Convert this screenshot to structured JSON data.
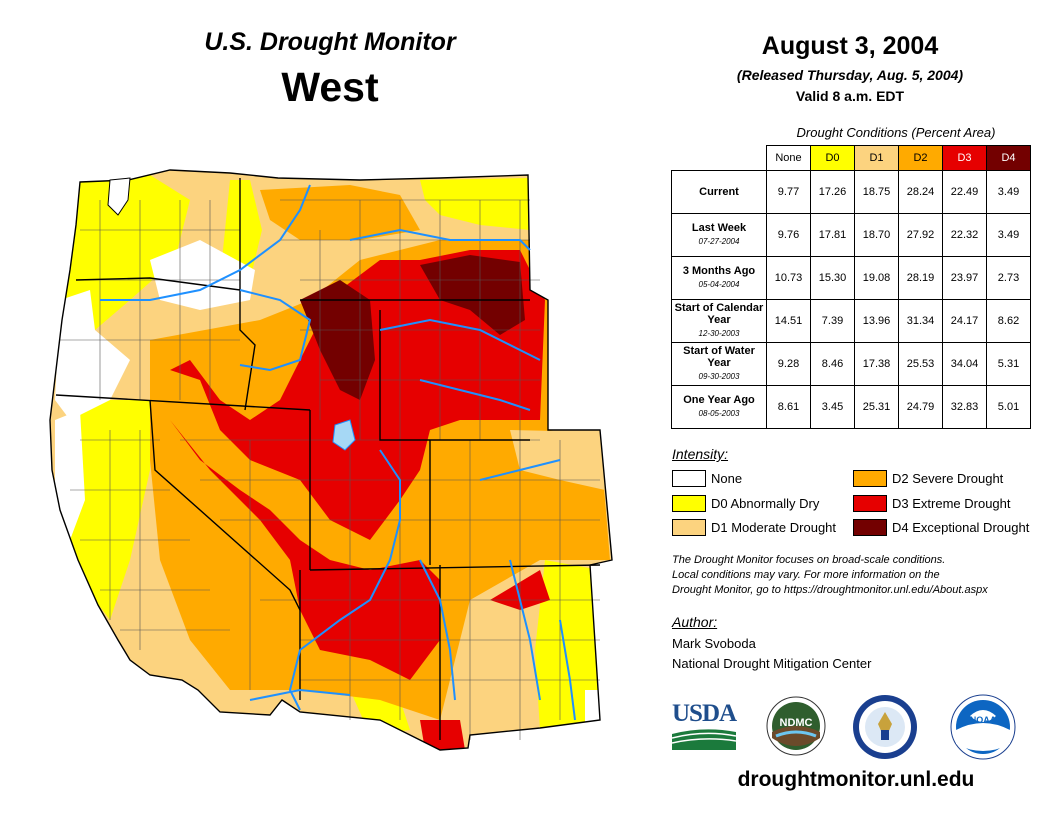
{
  "header": {
    "monitor_title": "U.S. Drought Monitor",
    "region": "West",
    "date": "August 3, 2004",
    "released": "(Released Thursday, Aug. 5, 2004)",
    "valid": "Valid 8 a.m. EDT"
  },
  "table": {
    "caption": "Drought Conditions (Percent Area)",
    "columns": [
      {
        "label": "None",
        "color": "#ffffff",
        "text_color": "#000000"
      },
      {
        "label": "D0",
        "color": "#ffff00",
        "text_color": "#000000"
      },
      {
        "label": "D1",
        "color": "#fcd37f",
        "text_color": "#000000"
      },
      {
        "label": "D2",
        "color": "#ffaa00",
        "text_color": "#000000"
      },
      {
        "label": "D3",
        "color": "#e60000",
        "text_color": "#ffffff"
      },
      {
        "label": "D4",
        "color": "#730000",
        "text_color": "#ffffff"
      }
    ],
    "rows": [
      {
        "label": "Current",
        "sub": "",
        "values": [
          "9.77",
          "17.26",
          "18.75",
          "28.24",
          "22.49",
          "3.49"
        ]
      },
      {
        "label": "Last Week",
        "sub": "07-27-2004",
        "values": [
          "9.76",
          "17.81",
          "18.70",
          "27.92",
          "22.32",
          "3.49"
        ]
      },
      {
        "label": "3 Months Ago",
        "sub": "05-04-2004",
        "values": [
          "10.73",
          "15.30",
          "19.08",
          "28.19",
          "23.97",
          "2.73"
        ]
      },
      {
        "label": "Start of Calendar Year",
        "sub": "12-30-2003",
        "values": [
          "14.51",
          "7.39",
          "13.96",
          "31.34",
          "24.17",
          "8.62"
        ]
      },
      {
        "label": "Start of Water Year",
        "sub": "09-30-2003",
        "values": [
          "9.28",
          "8.46",
          "17.38",
          "25.53",
          "34.04",
          "5.31"
        ]
      },
      {
        "label": "One Year Ago",
        "sub": "08-05-2003",
        "values": [
          "8.61",
          "3.45",
          "25.31",
          "24.79",
          "32.83",
          "5.01"
        ]
      }
    ]
  },
  "legend": {
    "title": "Intensity:",
    "items": [
      {
        "label": "None",
        "color": "#ffffff"
      },
      {
        "label": "D0 Abnormally Dry",
        "color": "#ffff00"
      },
      {
        "label": "D1 Moderate Drought",
        "color": "#fcd37f"
      },
      {
        "label": "D2 Severe Drought",
        "color": "#ffaa00"
      },
      {
        "label": "D3 Extreme Drought",
        "color": "#e60000"
      },
      {
        "label": "D4 Exceptional Drought",
        "color": "#730000"
      }
    ]
  },
  "note": {
    "line1": "The Drought Monitor focuses on broad-scale conditions.",
    "line2": "Local conditions may vary. For more information on the",
    "line3": "Drought Monitor, go to https://droughtmonitor.unl.edu/About.aspx"
  },
  "author": {
    "label": "Author:",
    "name": "Mark Svoboda",
    "org": "National Drought Mitigation Center"
  },
  "logos": {
    "usda": "USDA",
    "ndmc": "NDMC",
    "noaa": "NOAA"
  },
  "footer_url": "droughtmonitor.unl.edu",
  "colors": {
    "river": "#1e90ff",
    "border": "#555555"
  }
}
